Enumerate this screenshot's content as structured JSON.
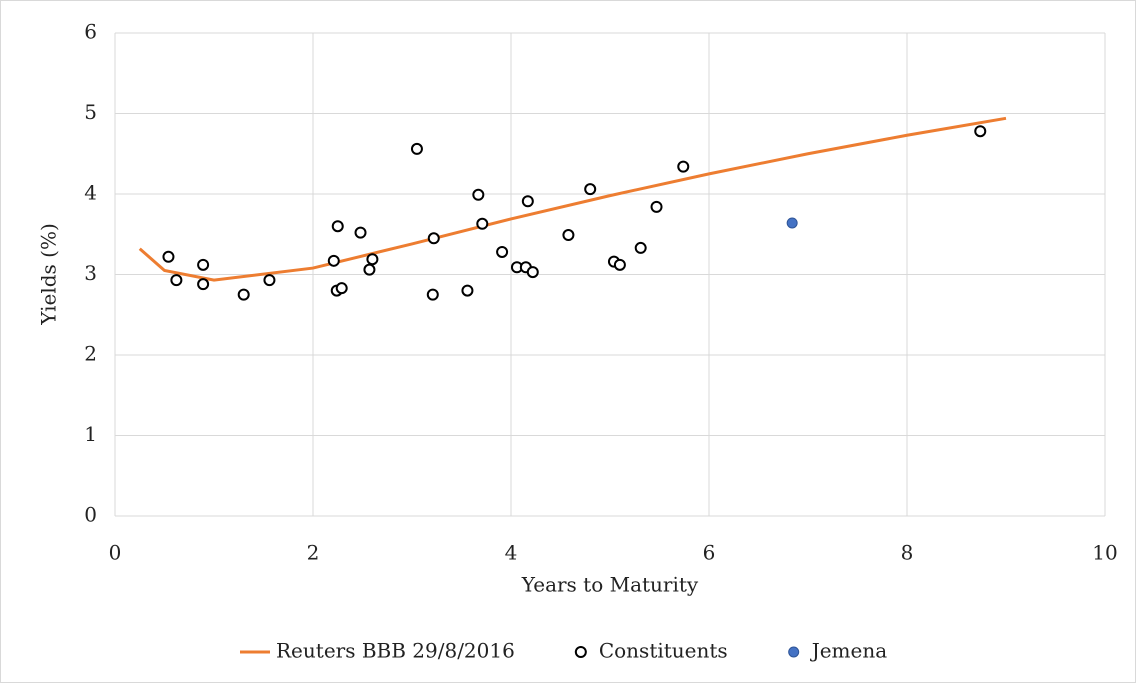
{
  "chart_data": {
    "type": "scatter",
    "x_label": "Years to Maturity",
    "y_label": "Yields (%)",
    "xlim": [
      0,
      10
    ],
    "xticks": [
      0,
      2,
      4,
      6,
      8,
      10
    ],
    "ylim": [
      0,
      6
    ],
    "yticks": [
      0,
      1,
      2,
      3,
      4,
      5,
      6
    ],
    "grid": true,
    "legend": "bottom",
    "series": [
      {
        "name": "Reuters BBB 29/8/2016",
        "type": "line",
        "color": "#ED7D31",
        "x": [
          0.25,
          0.5,
          1,
          2,
          3,
          4,
          5,
          6,
          7,
          8,
          9
        ],
        "values": [
          3.32,
          3.05,
          2.93,
          3.08,
          3.38,
          3.69,
          3.98,
          4.25,
          4.5,
          4.73,
          4.94
        ]
      },
      {
        "name": "Constituents",
        "type": "scatter",
        "color": "#000000",
        "marker": "open",
        "x": [
          0.54,
          0.62,
          0.89,
          0.89,
          1.3,
          1.56,
          2.21,
          2.25,
          2.24,
          2.29,
          2.48,
          2.57,
          2.6,
          3.05,
          3.21,
          3.22,
          3.56,
          3.67,
          3.71,
          3.91,
          4.06,
          4.15,
          4.17,
          4.22,
          4.58,
          4.8,
          5.04,
          5.1,
          5.31,
          5.47,
          5.74,
          8.74
        ],
        "values": [
          3.22,
          2.93,
          3.12,
          2.88,
          2.75,
          2.93,
          3.17,
          3.6,
          2.8,
          2.83,
          3.52,
          3.06,
          3.19,
          4.56,
          2.75,
          3.45,
          2.8,
          3.99,
          3.63,
          3.28,
          3.09,
          3.09,
          3.91,
          3.03,
          3.49,
          4.06,
          3.16,
          3.12,
          3.33,
          3.84,
          4.34,
          4.78
        ]
      },
      {
        "name": "Jemena",
        "type": "scatter",
        "color": "#4472C4",
        "marker": "filled",
        "x": [
          6.84
        ],
        "values": [
          3.64
        ]
      }
    ]
  }
}
